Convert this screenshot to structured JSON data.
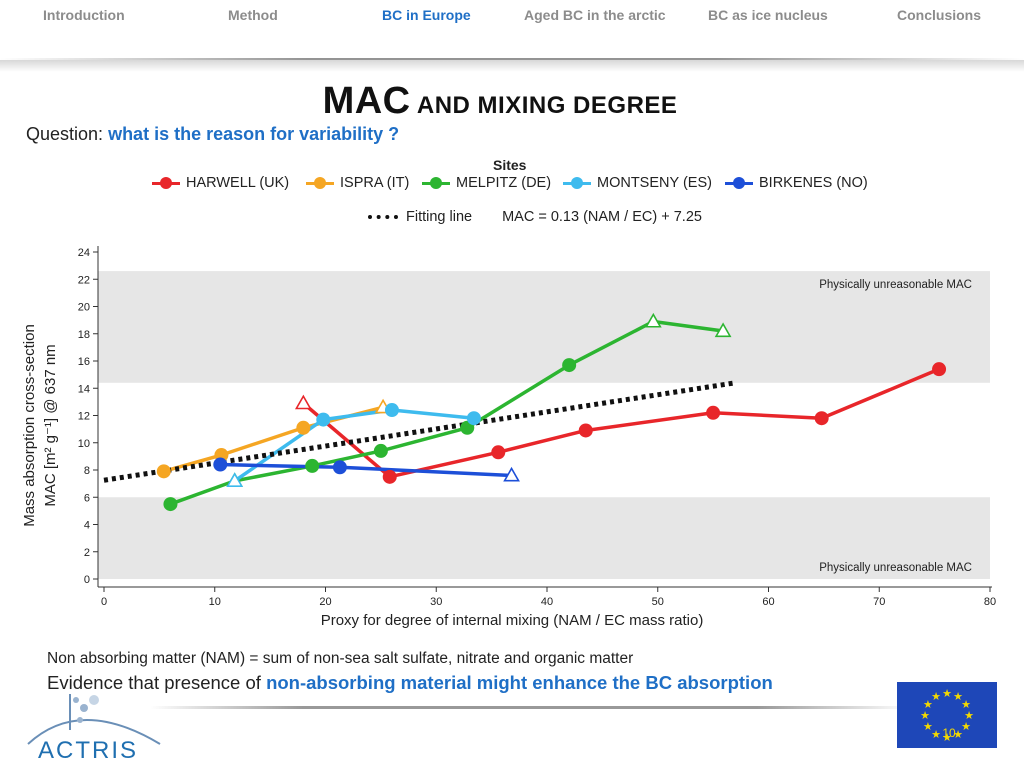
{
  "nav": {
    "items": [
      {
        "label": "Introduction"
      },
      {
        "label": "Method"
      },
      {
        "label": "BC in Europe"
      },
      {
        "label": "Aged BC in the arctic"
      },
      {
        "label": "BC as ice nucleus"
      },
      {
        "label": "Conclusions"
      }
    ],
    "active_index": 2
  },
  "title": {
    "big": "MAC",
    "rest": "AND MIXING DEGREE"
  },
  "question": {
    "prefix": "Question:",
    "text": "what  is the reason for variability ?"
  },
  "legend": {
    "title": "Sites",
    "fit_label": "Fitting line",
    "equation": "MAC = 0.13 (NAM / EC) + 7.25"
  },
  "chart_data": {
    "type": "line",
    "xlabel": "Proxy for degree of internal mixing (NAM / EC mass ratio)",
    "ylabel_line1": "Mass absorption cross-section",
    "ylabel_line2": "MAC [m² g⁻¹] @ 637 nm",
    "xlim": [
      0,
      80
    ],
    "ylim": [
      0,
      24
    ],
    "xticks": [
      0,
      10,
      20,
      30,
      40,
      50,
      60,
      70,
      80
    ],
    "yticks": [
      0,
      2,
      4,
      6,
      8,
      10,
      12,
      14,
      16,
      18,
      20,
      22,
      24
    ],
    "grid": false,
    "legend_position": "top",
    "shaded_bands": [
      {
        "y0": 14.4,
        "y1": 22.6,
        "label": "Physically unreasonable MAC"
      },
      {
        "y0": 0,
        "y1": 6.0,
        "label": "Physically unreasonable MAC"
      }
    ],
    "fit_line": {
      "x": [
        0,
        57
      ],
      "y": [
        7.25,
        14.4
      ]
    },
    "series": [
      {
        "name": "HARWELL (UK)",
        "color": "#e8262a",
        "points": [
          [
            18.0,
            12.9,
            "triangle"
          ],
          [
            25.8,
            7.5,
            "circle"
          ],
          [
            35.6,
            9.3,
            "circle"
          ],
          [
            43.5,
            10.9,
            "circle"
          ],
          [
            55.0,
            12.2,
            "circle"
          ],
          [
            64.8,
            11.8,
            "circle"
          ],
          [
            75.4,
            15.4,
            "circle"
          ]
        ]
      },
      {
        "name": "ISPRA (IT)",
        "color": "#f5a623",
        "points": [
          [
            5.4,
            7.9,
            "circle"
          ],
          [
            10.6,
            9.1,
            "circle"
          ],
          [
            18.0,
            11.1,
            "circle"
          ],
          [
            25.2,
            12.6,
            "triangle"
          ]
        ]
      },
      {
        "name": "MELPITZ (DE)",
        "color": "#2cb531",
        "points": [
          [
            6.0,
            5.5,
            "circle"
          ],
          [
            11.8,
            7.2,
            "triangle"
          ],
          [
            18.8,
            8.3,
            "circle"
          ],
          [
            25.0,
            9.4,
            "circle"
          ],
          [
            32.8,
            11.1,
            "circle"
          ],
          [
            42.0,
            15.7,
            "circle"
          ],
          [
            49.6,
            18.9,
            "triangle"
          ],
          [
            55.9,
            18.2,
            "triangle"
          ]
        ]
      },
      {
        "name": "MONTSENY (ES)",
        "color": "#3ebbee",
        "points": [
          [
            11.8,
            7.2,
            "triangle"
          ],
          [
            19.8,
            11.7,
            "circle"
          ],
          [
            26.0,
            12.4,
            "circle"
          ],
          [
            33.4,
            11.8,
            "circle"
          ]
        ]
      },
      {
        "name": "BIRKENES (NO)",
        "color": "#1d4fd8",
        "points": [
          [
            10.5,
            8.4,
            "circle"
          ],
          [
            21.3,
            8.2,
            "circle"
          ],
          [
            36.8,
            7.6,
            "triangle"
          ]
        ]
      }
    ]
  },
  "note": "Non absorbing matter (NAM) = sum of non-sea salt sulfate, nitrate and organic matter",
  "evidence": {
    "prefix": "Evidence that presence of",
    "highlight": "non-absorbing material might enhance the BC absorption"
  },
  "logo": {
    "text": "ACTRIS",
    "color": "#1f6fb0"
  },
  "page_number": "10",
  "colors": {
    "accent": "#1f6fc6",
    "eu_blue": "#1e47b8",
    "eu_yellow": "#f4d900"
  }
}
